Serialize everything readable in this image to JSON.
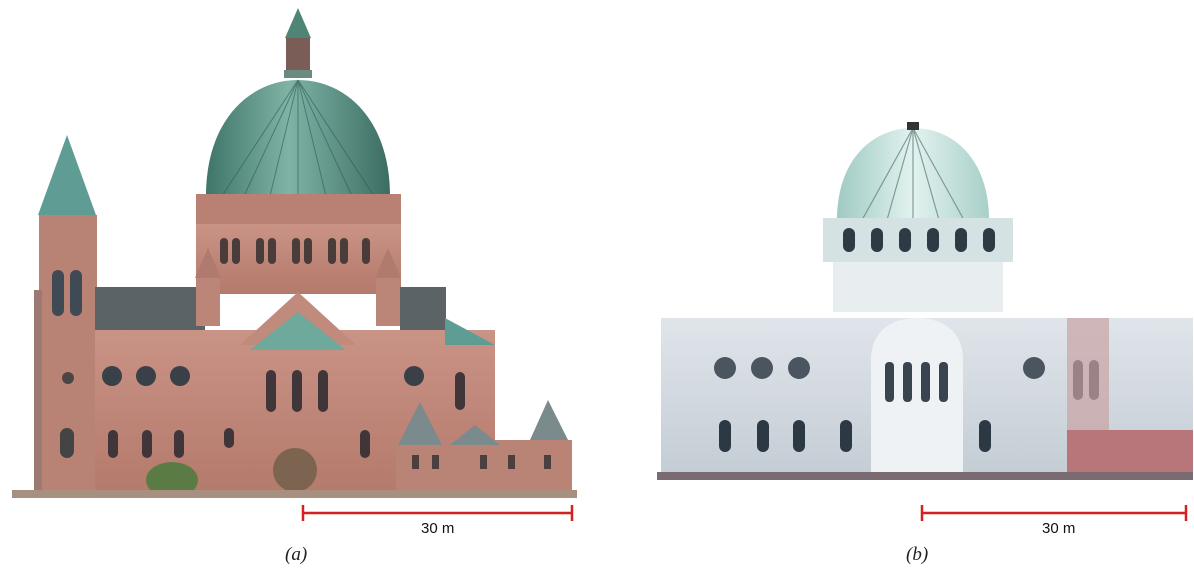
{
  "panels": [
    {
      "caption": "(a)",
      "scale_label": "30 m",
      "colors": {
        "stone": "#c9897c",
        "dome": "#5c9a8c",
        "scale": "#d42020"
      }
    },
    {
      "caption": "(b)",
      "scale_label": "30 m",
      "colors": {
        "wall": "#d8dfe6",
        "dome": "#cfe8e4",
        "scale": "#d42020"
      }
    }
  ]
}
